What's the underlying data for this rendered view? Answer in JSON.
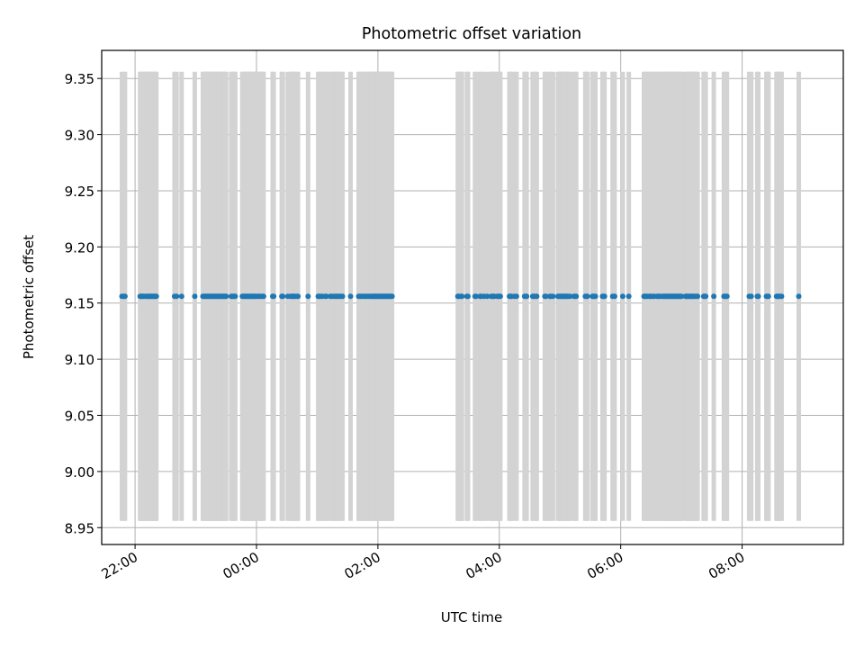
{
  "chart_data": {
    "type": "scatter",
    "title": "Photometric offset variation",
    "xlabel": "UTC time",
    "ylabel": "Photometric offset",
    "xlim": [
      "21:27",
      "09:40"
    ],
    "ylim": [
      8.935,
      9.375
    ],
    "x_ticks": [
      "22:00",
      "00:00",
      "02:00",
      "04:00",
      "06:00",
      "08:00"
    ],
    "y_ticks": [
      "8.95",
      "9.00",
      "9.05",
      "9.10",
      "9.15",
      "9.20",
      "9.25",
      "9.30",
      "9.35"
    ],
    "grid": true,
    "colors": {
      "points": "#1f77b4",
      "error_bars": "#d3d3d3",
      "grid": "#b0b0b0"
    },
    "series": [
      {
        "y_constant": 9.156,
        "error_range": [
          8.956,
          9.356
        ],
        "x": [
          "21:47",
          "21:49",
          "21:50",
          "22:05",
          "22:06",
          "22:07",
          "22:08",
          "22:09",
          "22:11",
          "22:12",
          "22:13",
          "22:14",
          "22:15",
          "22:16",
          "22:17",
          "22:18",
          "22:19",
          "22:20",
          "22:21",
          "22:39",
          "22:41",
          "22:46",
          "22:59",
          "23:07",
          "23:08",
          "23:09",
          "23:10",
          "23:11",
          "23:12",
          "23:13",
          "23:14",
          "23:15",
          "23:16",
          "23:17",
          "23:18",
          "23:19",
          "23:20",
          "23:21",
          "23:22",
          "23:23",
          "23:24",
          "23:25",
          "23:26",
          "23:27",
          "23:28",
          "23:29",
          "23:30",
          "23:35",
          "23:36",
          "23:37",
          "23:38",
          "23:39",
          "23:46",
          "23:47",
          "23:48",
          "23:49",
          "23:50",
          "23:51",
          "23:52",
          "23:53",
          "23:54",
          "23:55",
          "23:56",
          "23:57",
          "23:58",
          "23:59",
          "00:01",
          "00:02",
          "00:03",
          "00:05",
          "00:06",
          "00:07",
          "00:16",
          "00:17",
          "00:25",
          "00:26",
          "00:31",
          "00:34",
          "00:35",
          "00:36",
          "00:37",
          "00:38",
          "00:40",
          "00:41",
          "00:51",
          "01:01",
          "01:02",
          "01:03",
          "01:05",
          "01:08",
          "01:09",
          "01:13",
          "01:14",
          "01:16",
          "01:18",
          "01:19",
          "01:20",
          "01:22",
          "01:23",
          "01:25",
          "01:33",
          "01:41",
          "01:42",
          "01:43",
          "01:45",
          "01:47",
          "01:48",
          "01:50",
          "01:51",
          "01:53",
          "01:54",
          "01:55",
          "01:56",
          "01:57",
          "01:58",
          "01:59",
          "02:00",
          "02:01",
          "02:02",
          "02:03",
          "02:04",
          "02:05",
          "02:06",
          "02:07",
          "02:08",
          "02:09",
          "02:10",
          "02:11",
          "02:12",
          "02:13",
          "02:14",
          "03:19",
          "03:20",
          "03:22",
          "03:23",
          "03:28",
          "03:29",
          "03:36",
          "03:37",
          "03:41",
          "03:42",
          "03:45",
          "03:48",
          "03:52",
          "03:53",
          "03:54",
          "03:55",
          "03:58",
          "03:59",
          "04:00",
          "04:01",
          "04:10",
          "04:11",
          "04:12",
          "04:15",
          "04:17",
          "04:25",
          "04:26",
          "04:27",
          "04:33",
          "04:34",
          "04:36",
          "04:37",
          "04:45",
          "04:46",
          "04:50",
          "04:51",
          "04:53",
          "04:58",
          "04:59",
          "05:00",
          "05:01",
          "05:02",
          "05:03",
          "05:04",
          "05:05",
          "05:06",
          "05:07",
          "05:08",
          "05:10",
          "05:14",
          "05:15",
          "05:16",
          "05:25",
          "05:26",
          "05:27",
          "05:32",
          "05:33",
          "05:34",
          "05:35",
          "05:42",
          "05:43",
          "05:44",
          "05:52",
          "05:54",
          "06:02",
          "06:08",
          "06:23",
          "06:24",
          "06:25",
          "06:26",
          "06:28",
          "06:29",
          "06:30",
          "06:32",
          "06:33",
          "06:36",
          "06:37",
          "06:38",
          "06:40",
          "06:42",
          "06:43",
          "06:44",
          "06:45",
          "06:46",
          "06:47",
          "06:48",
          "06:49",
          "06:50",
          "06:51",
          "06:52",
          "06:53",
          "06:54",
          "06:55",
          "06:56",
          "06:57",
          "06:58",
          "06:59",
          "07:00",
          "07:04",
          "07:05",
          "07:06",
          "07:07",
          "07:08",
          "07:09",
          "07:10",
          "07:11",
          "07:12",
          "07:13",
          "07:15",
          "07:16",
          "07:22",
          "07:23",
          "07:24",
          "07:32",
          "07:42",
          "07:43",
          "07:44",
          "07:45",
          "08:07",
          "08:09",
          "08:15",
          "08:16",
          "08:24",
          "08:25",
          "08:26",
          "08:34",
          "08:35",
          "08:36",
          "08:37",
          "08:39",
          "08:56"
        ]
      }
    ]
  }
}
